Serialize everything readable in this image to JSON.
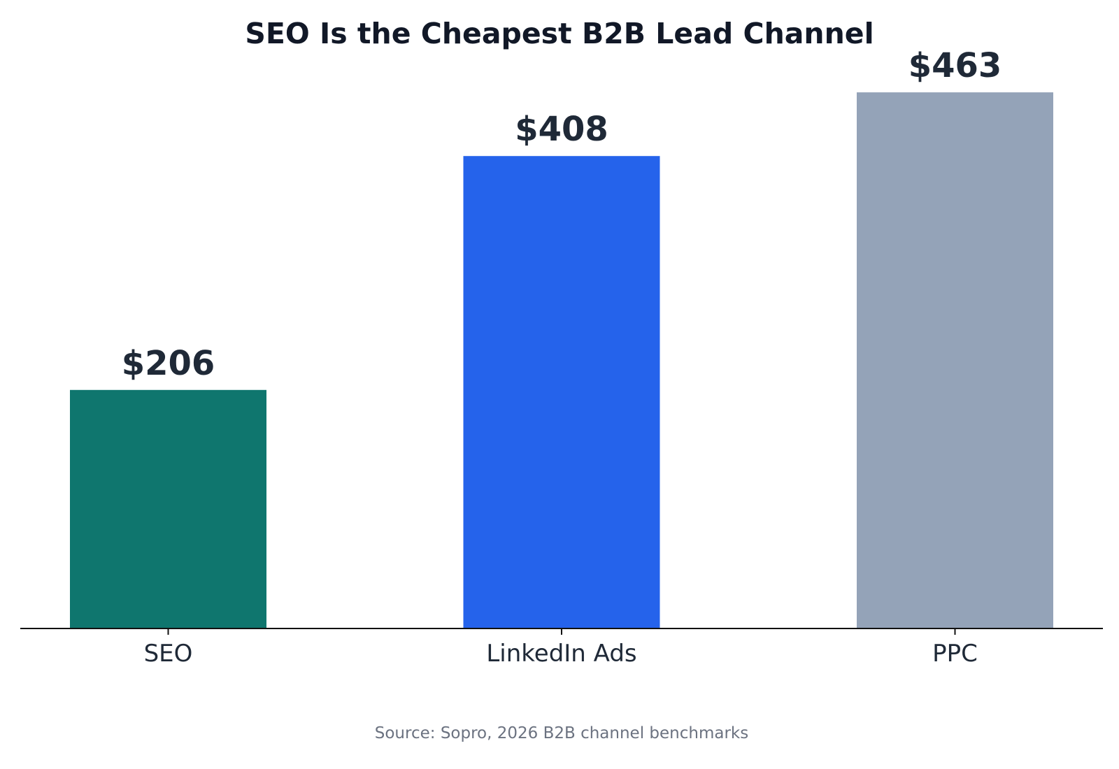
{
  "chart_data": {
    "type": "bar",
    "title": "SEO Is the Cheapest B2B Lead Channel",
    "categories": [
      "SEO",
      "LinkedIn Ads",
      "PPC"
    ],
    "values": [
      206,
      408,
      463
    ],
    "value_labels": [
      "$206",
      "$408",
      "$463"
    ],
    "colors": [
      "#0f766e",
      "#2563eb",
      "#94a3b8"
    ],
    "xlabel": "",
    "ylabel": "",
    "ylim": [
      0,
      486
    ],
    "grid": false,
    "legend": "none",
    "y_axis_visible": false,
    "source": "Source: Sopro, 2026 B2B channel benchmarks"
  }
}
